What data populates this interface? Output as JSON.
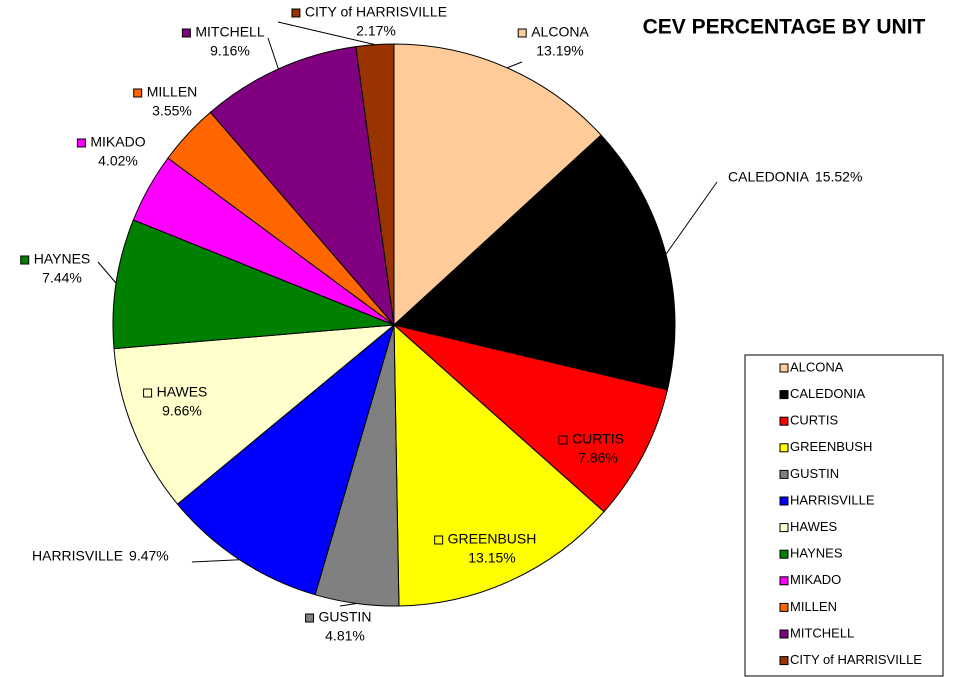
{
  "chart_data": {
    "type": "pie",
    "title": "CEV PERCENTAGE BY UNIT",
    "categories": [
      "ALCONA",
      "CALEDONIA",
      "CURTIS",
      "GREENBUSH",
      "GUSTIN",
      "HARRISVILLE",
      "HAWES",
      "HAYNES",
      "MIKADO",
      "MILLEN",
      "MITCHELL",
      "CITY of HARRISVILLE"
    ],
    "values": [
      13.19,
      15.52,
      7.86,
      13.15,
      4.81,
      9.47,
      9.66,
      7.44,
      4.02,
      3.55,
      9.16,
      2.17
    ],
    "value_labels": [
      "13.19%",
      "15.52%",
      "7.86%",
      "13.15%",
      "4.81%",
      "9.47%",
      "9.66%",
      "7.44%",
      "4.02%",
      "3.55%",
      "9.16%",
      "2.17%"
    ],
    "colors": [
      "#FFCC99",
      "#000000",
      "#FF0000",
      "#FFFF00",
      "#808080",
      "#0000FF",
      "#FFFFCC",
      "#008000",
      "#FF00FF",
      "#FF6600",
      "#800080",
      "#993300"
    ],
    "legend": "right"
  }
}
